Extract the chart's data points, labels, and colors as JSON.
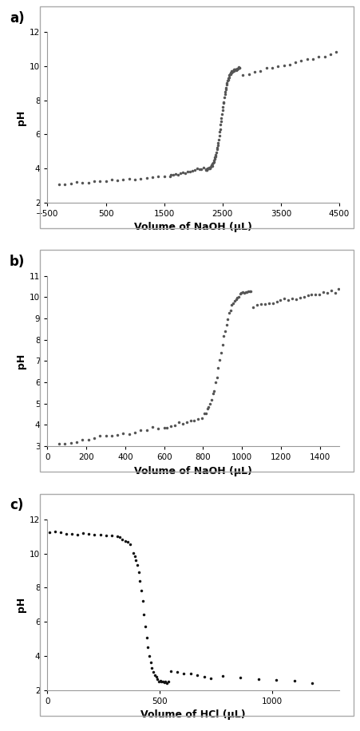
{
  "panel_a": {
    "label": "a)",
    "xlabel": "Volume of NaOH (μL)",
    "ylabel": "pH",
    "xlim": [
      -500,
      4500
    ],
    "ylim": [
      2,
      12
    ],
    "xticks": [
      -500,
      500,
      1500,
      2500,
      3500,
      4500
    ],
    "yticks": [
      2,
      4,
      6,
      8,
      10,
      12
    ],
    "marker_color": "#555555",
    "marker_size": 2.5
  },
  "panel_b": {
    "label": "b)",
    "xlabel": "Volume of NaOH (μL)",
    "ylabel": "pH",
    "xlim": [
      0,
      1500
    ],
    "ylim": [
      3,
      11
    ],
    "xticks": [
      0,
      200,
      400,
      600,
      800,
      1000,
      1200,
      1400
    ],
    "yticks": [
      3,
      4,
      5,
      6,
      7,
      8,
      9,
      10,
      11
    ],
    "marker_color": "#555555",
    "marker_size": 2.5
  },
  "panel_c": {
    "label": "c)",
    "xlabel": "Volume of HCl (μL)",
    "ylabel": "pH",
    "xlim": [
      0,
      1300
    ],
    "ylim": [
      2,
      12
    ],
    "xticks": [
      0,
      500,
      1000
    ],
    "yticks": [
      2,
      4,
      6,
      8,
      10,
      12
    ],
    "marker_color": "#111111",
    "marker_size": 2.5
  },
  "figure_bg": "#ffffff",
  "axes_bg": "#ffffff",
  "border_color": "#aaaaaa"
}
